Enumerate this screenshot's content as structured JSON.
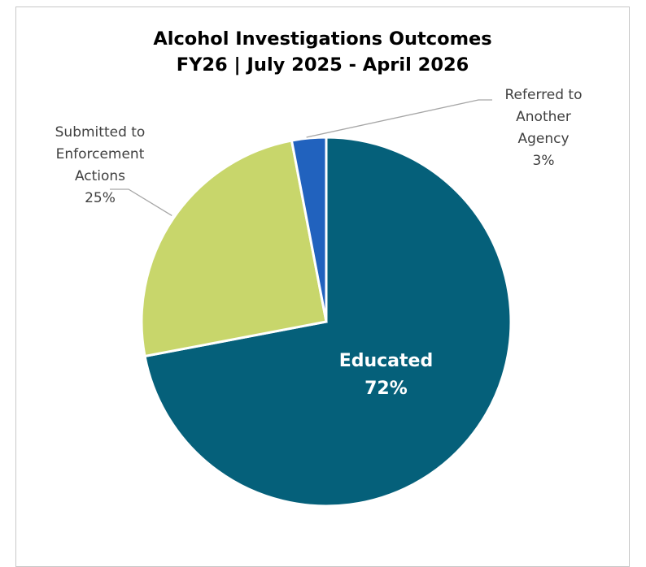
{
  "chart_data": {
    "type": "pie",
    "title": "Alcohol Investigations Outcomes",
    "subtitle": "FY26 | July 2025 - April 2026",
    "slices": [
      {
        "label_lines": [
          "Educated"
        ],
        "value": 72,
        "value_label": "72%",
        "color": "#05607a",
        "label_position": "inside"
      },
      {
        "label_lines": [
          "Submitted to",
          "Enforcement",
          "Actions"
        ],
        "value": 25,
        "value_label": "25%",
        "color": "#c8d66b",
        "label_position": "outside-left"
      },
      {
        "label_lines": [
          "Referred to",
          "Another",
          "Agency"
        ],
        "value": 3,
        "value_label": "3%",
        "color": "#2162be",
        "label_position": "outside-top-right"
      }
    ],
    "legend": "none"
  }
}
